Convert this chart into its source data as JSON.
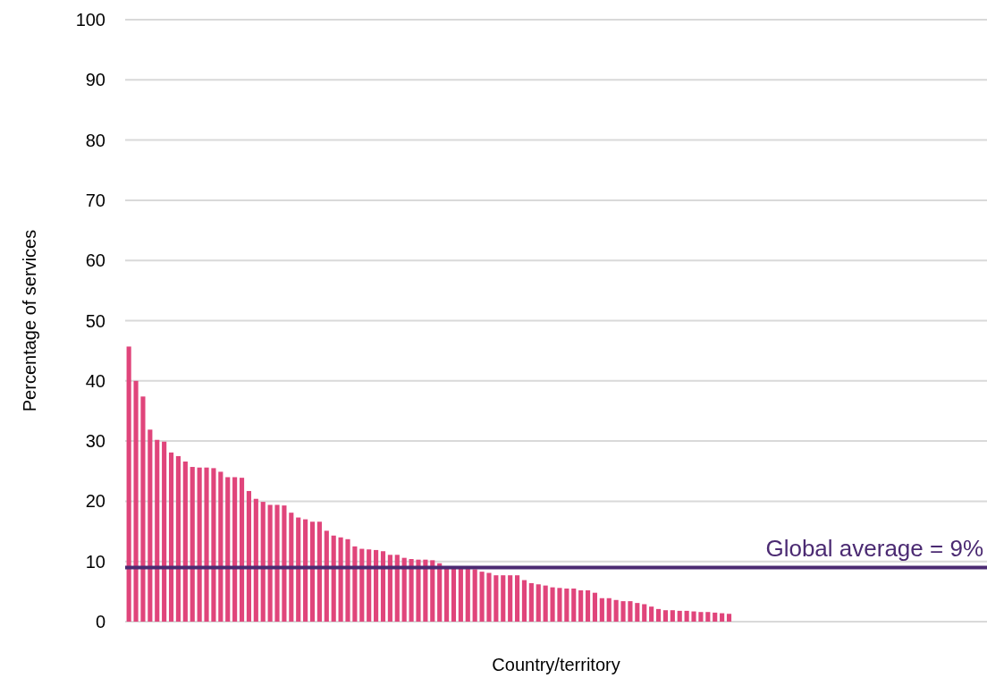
{
  "chart_data": {
    "type": "bar",
    "xlabel": "Country/territory",
    "ylabel": "Percentage of services",
    "categories": [
      null,
      null,
      null,
      null,
      null,
      null,
      null,
      null,
      null,
      null,
      null,
      null,
      null,
      null,
      null,
      null,
      null,
      null,
      null,
      null,
      null,
      null,
      null,
      null,
      null,
      null,
      null,
      null,
      null,
      null,
      null,
      null,
      null,
      null,
      null,
      null,
      null,
      null,
      null,
      null,
      null,
      null,
      null,
      null,
      null,
      null,
      null,
      null,
      null,
      null,
      null,
      null,
      null,
      null,
      null,
      null,
      null,
      null,
      null,
      null,
      null,
      null,
      null,
      null,
      null,
      null,
      null,
      null,
      null,
      null,
      null,
      null,
      null,
      null,
      null,
      null,
      null,
      null,
      null,
      null,
      null,
      null,
      null,
      null,
      null,
      null,
      null,
      null,
      null,
      null,
      null,
      null,
      null,
      null,
      null,
      null,
      null,
      null,
      null,
      null,
      null,
      null,
      null,
      null,
      null,
      null,
      null,
      null,
      null,
      null,
      null,
      null,
      null,
      null,
      null,
      null,
      null,
      null,
      null,
      null,
      null,
      null
    ],
    "values": [
      45.7,
      40.0,
      37.4,
      31.9,
      30.2,
      29.9,
      28.1,
      27.5,
      26.6,
      25.7,
      25.6,
      25.6,
      25.5,
      24.9,
      24.0,
      24.0,
      23.9,
      21.7,
      20.4,
      19.9,
      19.4,
      19.4,
      19.3,
      18.1,
      17.3,
      17.0,
      16.6,
      16.6,
      15.1,
      14.3,
      14.0,
      13.7,
      12.5,
      12.1,
      12.0,
      11.9,
      11.7,
      11.1,
      11.1,
      10.6,
      10.4,
      10.3,
      10.3,
      10.2,
      9.7,
      9.1,
      9.1,
      8.9,
      8.8,
      8.7,
      8.3,
      8.1,
      7.7,
      7.7,
      7.7,
      7.7,
      6.9,
      6.4,
      6.2,
      6.0,
      5.7,
      5.6,
      5.5,
      5.5,
      5.2,
      5.2,
      4.8,
      3.9,
      3.9,
      3.6,
      3.4,
      3.4,
      3.1,
      2.9,
      2.5,
      2.1,
      1.9,
      1.9,
      1.8,
      1.8,
      1.7,
      1.6,
      1.6,
      1.5,
      1.4,
      1.3,
      null,
      null,
      null,
      null,
      null,
      null,
      null,
      null,
      null,
      null,
      null,
      null,
      null,
      null,
      null,
      null,
      null,
      null,
      null,
      null,
      null,
      null,
      null,
      null,
      null,
      null,
      null,
      null,
      null,
      null,
      null,
      null,
      null,
      null,
      null,
      null
    ],
    "color": "#e0457b",
    "ylim": [
      0,
      100
    ],
    "yticks": [
      0,
      10,
      20,
      30,
      40,
      50,
      60,
      70,
      80,
      90,
      100
    ],
    "grid": "y",
    "ref_lines": [
      {
        "axis": "y",
        "value": 9,
        "label": "Global average = 9%",
        "color": "#4b2a72"
      }
    ]
  }
}
